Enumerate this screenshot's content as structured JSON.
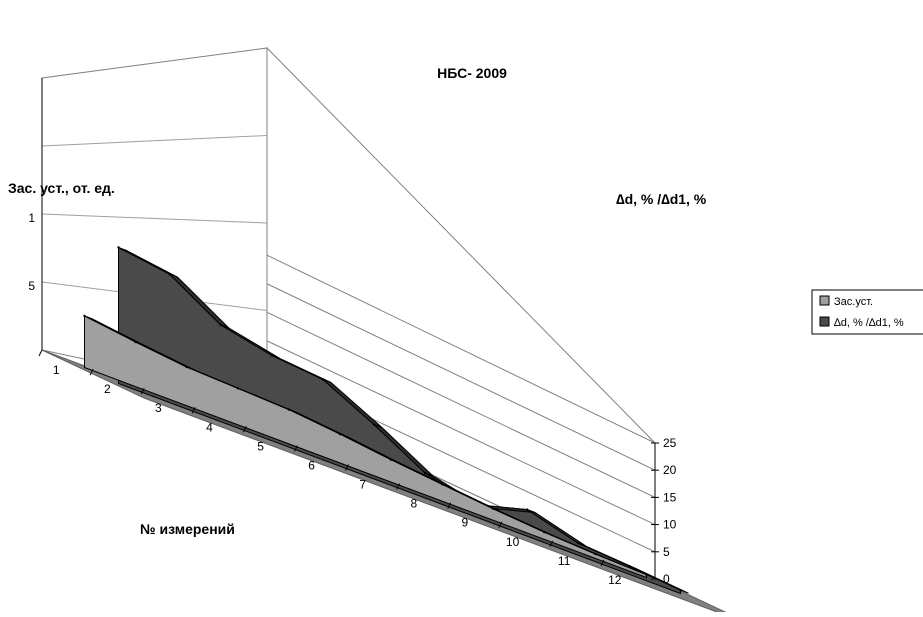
{
  "chart_data": {
    "type": "area",
    "title": "НБС- 2009",
    "xlabel": "№ измерений",
    "ylabel_left": "Зас. уст., от. ед.",
    "ylabel_right": "∆d, % /∆d1, %",
    "categories": [
      "1",
      "2",
      "3",
      "4",
      "5",
      "6",
      "7",
      "8",
      "9",
      "10",
      "11",
      "12"
    ],
    "left_ticks": [
      "1",
      "5"
    ],
    "right_ticks": [
      "0",
      "5",
      "10",
      "15",
      "20",
      "25"
    ],
    "ylim_right": [
      0,
      25
    ],
    "grid": true,
    "legend_position": "right",
    "series": [
      {
        "name": "Зас.уст.",
        "color": "#a0a0a0",
        "values": [
          9.5,
          8.2,
          7.1,
          6.7,
          6.3,
          5.3,
          4.1,
          3.1,
          2.1,
          1.3,
          0.8,
          0.5
        ]
      },
      {
        "name": "∆d, % /∆d1, %",
        "color": "#4a4a4a",
        "values": [
          25.0,
          23.6,
          17.8,
          15.7,
          14.8,
          10.0,
          4.6,
          2.3,
          4.9,
          2.2,
          1.5,
          0.6
        ]
      }
    ]
  }
}
